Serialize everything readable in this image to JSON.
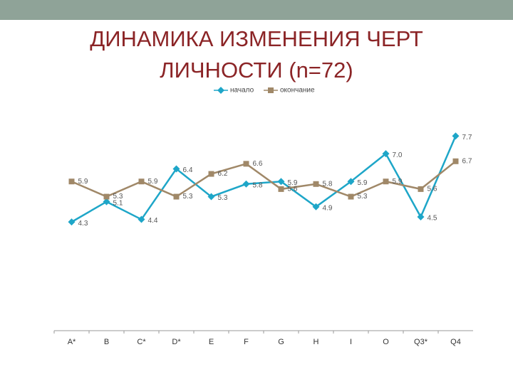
{
  "chart_data": {
    "type": "line",
    "title": "ДИНАМИКА ИЗМЕНЕНИЯ ЧЕРТ ЛИЧНОСТИ (n=72)",
    "categories": [
      "A*",
      "B",
      "C*",
      "D*",
      "E",
      "F",
      "G",
      "H",
      "I",
      "O",
      "Q3*",
      "Q4"
    ],
    "series": [
      {
        "name": "начало",
        "color": "#1ea6c8",
        "marker": "diamond",
        "values": [
          4.3,
          5.1,
          4.4,
          6.4,
          5.3,
          5.8,
          5.9,
          4.9,
          5.9,
          7.0,
          4.5,
          7.7
        ],
        "value_labels": [
          "4.3",
          "5.1",
          "4.4",
          "6.4",
          "5.3",
          "5.8",
          "5.9",
          "4.9",
          "5.9",
          "7.0",
          "4.5",
          "7.7"
        ]
      },
      {
        "name": "окончание",
        "color": "#a08868",
        "marker": "square",
        "values": [
          5.9,
          5.3,
          5.9,
          5.3,
          6.2,
          6.6,
          5.6,
          5.8,
          5.3,
          5.9,
          5.6,
          6.7
        ],
        "value_labels": [
          "5.9",
          "5.3",
          "5.9",
          "5.3",
          "6.2",
          "6.6",
          "5.6",
          "5.8",
          "5.3",
          "5.9",
          "5.6",
          "6.7"
        ]
      }
    ],
    "ylim": [
      0,
      9
    ],
    "legend": "top"
  }
}
